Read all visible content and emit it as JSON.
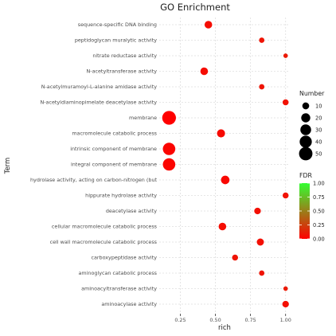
{
  "chart_data": {
    "type": "scatter",
    "title": "GO Enrichment",
    "xlabel": "rich",
    "ylabel": "Term",
    "xlim": [
      0.1,
      1.03
    ],
    "x_ticks": [
      0.25,
      0.5,
      0.75,
      1.0
    ],
    "x_tick_labels": [
      "0.25",
      "0.50",
      "0.75",
      "1.00"
    ],
    "grid": true,
    "legend_position": "right",
    "terms": [
      "sequence-specific DNA binding",
      "peptidoglycan muralytic activity",
      "nitrate reductase activity",
      "N-acetyltransferase activity",
      "N-acetylmuramoyl-L-alanine amidase activity",
      "N-acetyldiaminopimelate deacetylase activity",
      "membrane",
      "macromolecule catabolic process",
      "intrinsic component of membrane",
      "integral component of membrane",
      "hydrolase activity, acting on carbon-nitrogen (but",
      "hippurate hydrolase activity",
      "deacetylase activity",
      "cellular macromolecule catabolic process",
      "cell wall macromolecule catabolic process",
      "carboxypeptidase activity",
      "aminoglycan catabolic process",
      "aminoacyltransferase activity",
      "aminoacylase activity"
    ],
    "points": [
      {
        "term": "sequence-specific DNA binding",
        "rich": 0.45,
        "number": 13,
        "fdr": 0.05
      },
      {
        "term": "peptidoglycan muralytic activity",
        "rich": 0.83,
        "number": 5,
        "fdr": 0.08
      },
      {
        "term": "nitrate reductase activity",
        "rich": 1.0,
        "number": 3,
        "fdr": 0.1
      },
      {
        "term": "N-acetyltransferase activity",
        "rich": 0.42,
        "number": 13,
        "fdr": 0.05
      },
      {
        "term": "N-acetylmuramoyl-L-alanine amidase activity",
        "rich": 0.83,
        "number": 5,
        "fdr": 0.08
      },
      {
        "term": "N-acetyldiaminopimelate deacetylase activity",
        "rich": 1.0,
        "number": 7,
        "fdr": 0.07
      },
      {
        "term": "membrane",
        "rich": 0.17,
        "number": 53,
        "fdr": 0.0
      },
      {
        "term": "macromolecule catabolic process",
        "rich": 0.54,
        "number": 15,
        "fdr": 0.04
      },
      {
        "term": "intrinsic component of membrane",
        "rich": 0.17,
        "number": 42,
        "fdr": 0.02
      },
      {
        "term": "integral component of membrane",
        "rich": 0.17,
        "number": 42,
        "fdr": 0.02
      },
      {
        "term": "hydrolase activity, acting on carbon-nitrogen (but",
        "rich": 0.57,
        "number": 17,
        "fdr": 0.03
      },
      {
        "term": "hippurate hydrolase activity",
        "rich": 1.0,
        "number": 7,
        "fdr": 0.07
      },
      {
        "term": "deacetylase activity",
        "rich": 0.8,
        "number": 9,
        "fdr": 0.06
      },
      {
        "term": "cellular macromolecule catabolic process",
        "rich": 0.55,
        "number": 13,
        "fdr": 0.05
      },
      {
        "term": "cell wall macromolecule catabolic process",
        "rich": 0.82,
        "number": 11,
        "fdr": 0.06
      },
      {
        "term": "carboxypeptidase activity",
        "rich": 0.64,
        "number": 7,
        "fdr": 0.08
      },
      {
        "term": "aminoglycan catabolic process",
        "rich": 0.83,
        "number": 5,
        "fdr": 0.08
      },
      {
        "term": "aminoacyltransferase activity",
        "rich": 1.0,
        "number": 3,
        "fdr": 0.1
      },
      {
        "term": "aminoacylase activity",
        "rich": 1.0,
        "number": 9,
        "fdr": 0.06
      }
    ],
    "size_legend": {
      "title": "Number",
      "values": [
        10,
        20,
        30,
        40,
        50
      ],
      "labels": [
        "10",
        "20",
        "30",
        "40",
        "50"
      ]
    },
    "color_legend": {
      "title": "FDR",
      "min": 0.0,
      "max": 1.0,
      "ticks": [
        1.0,
        0.75,
        0.5,
        0.25,
        0.0
      ],
      "tick_labels": [
        "1.00",
        "0.75",
        "0.50",
        "0.25",
        "0.00"
      ],
      "low_color": "#ff0000",
      "high_color": "#33ff33"
    },
    "colors": {
      "panel_background": "#ffffff",
      "grid": "#dedede",
      "text": "#4d4d4d"
    }
  }
}
